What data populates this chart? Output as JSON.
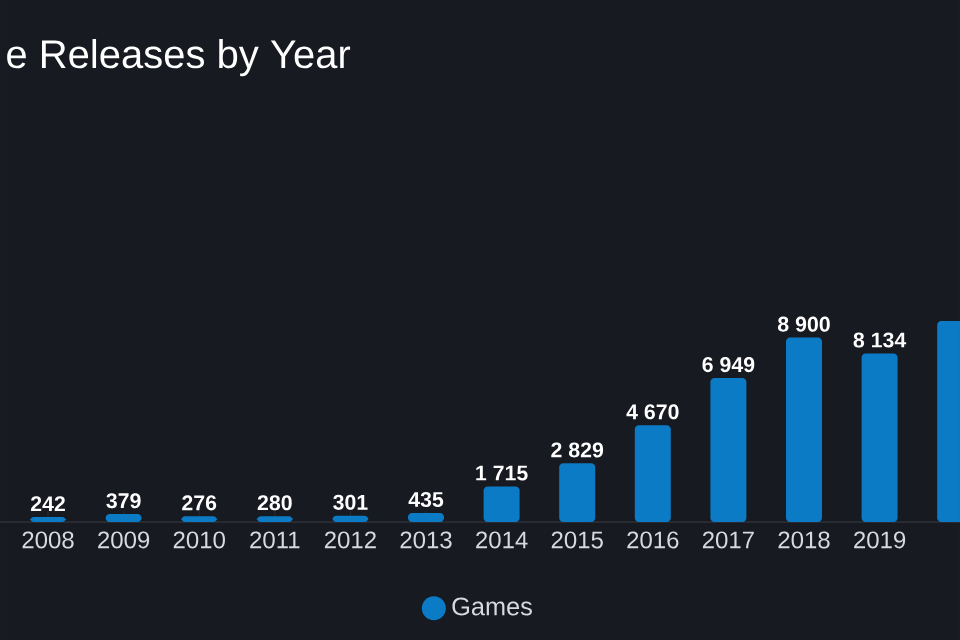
{
  "chart_data": {
    "type": "bar",
    "title": "e Releases by Year",
    "categories": [
      "2008",
      "2009",
      "2010",
      "2011",
      "2012",
      "2013",
      "2014",
      "2015",
      "2016",
      "2017",
      "2018",
      "2019",
      null
    ],
    "series": [
      {
        "name": "Games",
        "color": "#0b7bc5",
        "values": [
          242,
          379,
          276,
          280,
          301,
          435,
          1715,
          2829,
          4670,
          6949,
          8900,
          8134,
          9700
        ],
        "value_labels": [
          "242",
          "379",
          "276",
          "280",
          "301",
          "435",
          "1 715",
          "2 829",
          "4 670",
          "6 949",
          "8 900",
          "8 134",
          null
        ]
      }
    ],
    "legend": "bottom",
    "tick_labels": "x"
  }
}
